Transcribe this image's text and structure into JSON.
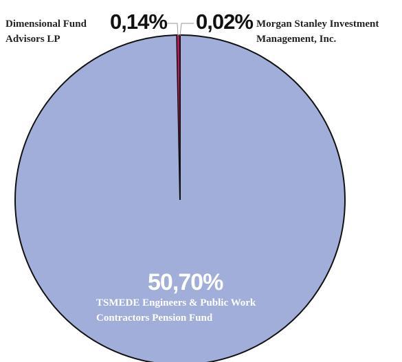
{
  "chart_data": {
    "type": "pie",
    "categories": [
      "TSMEDE Engineers & Public Work Contractors Pension Fund",
      "Dimensional Fund Advisors LP",
      "Morgan Stanley Investment Management, Inc."
    ],
    "values": [
      50.7,
      0.14,
      0.02
    ],
    "value_labels": [
      "50,70%",
      "0,14%",
      "0,02%"
    ],
    "colors": [
      "#a0aed9",
      "#c2185b",
      "#8e9bc9"
    ]
  }
}
